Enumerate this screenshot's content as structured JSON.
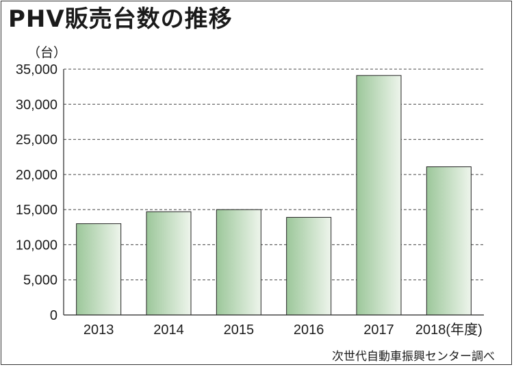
{
  "chart_data": {
    "type": "bar",
    "title": "PHV販売台数の推移",
    "ylabel": "（台）",
    "xlabel": "(年度)",
    "categories": [
      "2013",
      "2014",
      "2015",
      "2016",
      "2017",
      "2018"
    ],
    "values": [
      13000,
      14700,
      15000,
      13900,
      34100,
      21100
    ],
    "ylim": [
      0,
      35000
    ],
    "yticks": [
      "0",
      "5,000",
      "10,000",
      "15,000",
      "20,000",
      "25,000",
      "30,000",
      "35,000"
    ],
    "grid": true,
    "bar_color_dark": "#9cc79a",
    "bar_color_light": "#eef5ec",
    "source": "次世代自動車振興センター調べ"
  }
}
